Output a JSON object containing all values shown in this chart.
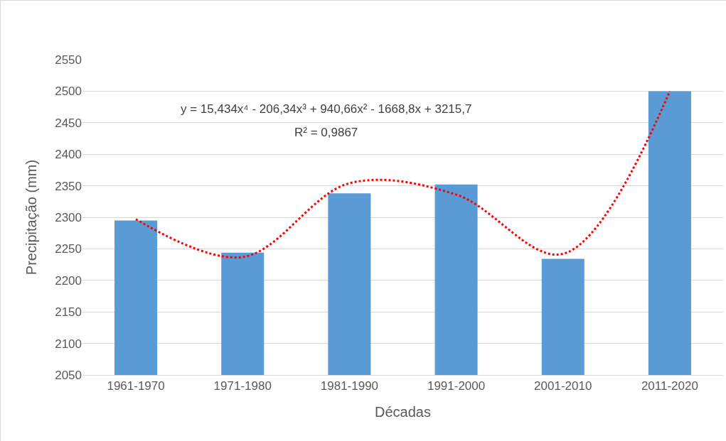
{
  "chart_data": {
    "type": "bar",
    "xlabel": "Décadas",
    "ylabel": "Precipitação (mm)",
    "categories": [
      "1961-1970",
      "1971-1980",
      "1981-1990",
      "1991-2000",
      "2001-2010",
      "2011-2020"
    ],
    "series": [
      {
        "color": "#5b9bd5",
        "values": [
          2295,
          2244,
          2338,
          2352,
          2234,
          2500
        ]
      },
      {
        "type": "line",
        "color": "#ff0000",
        "line_style": "dotted",
        "marker": "none",
        "values": [
          2297,
          2237,
          2354,
          2336,
          2242,
          2500
        ]
      }
    ],
    "ylim": [
      2050,
      2550
    ],
    "yticks": [
      2050,
      2100,
      2150,
      2200,
      2250,
      2300,
      2350,
      2400,
      2450,
      2500,
      2550
    ],
    "grid": "y",
    "legend": false,
    "annotations": [
      "y = 15,434x⁴ - 206,34x³ + 940,66x² - 1668,8x + 3215,7",
      "R² = 0,9867"
    ]
  }
}
